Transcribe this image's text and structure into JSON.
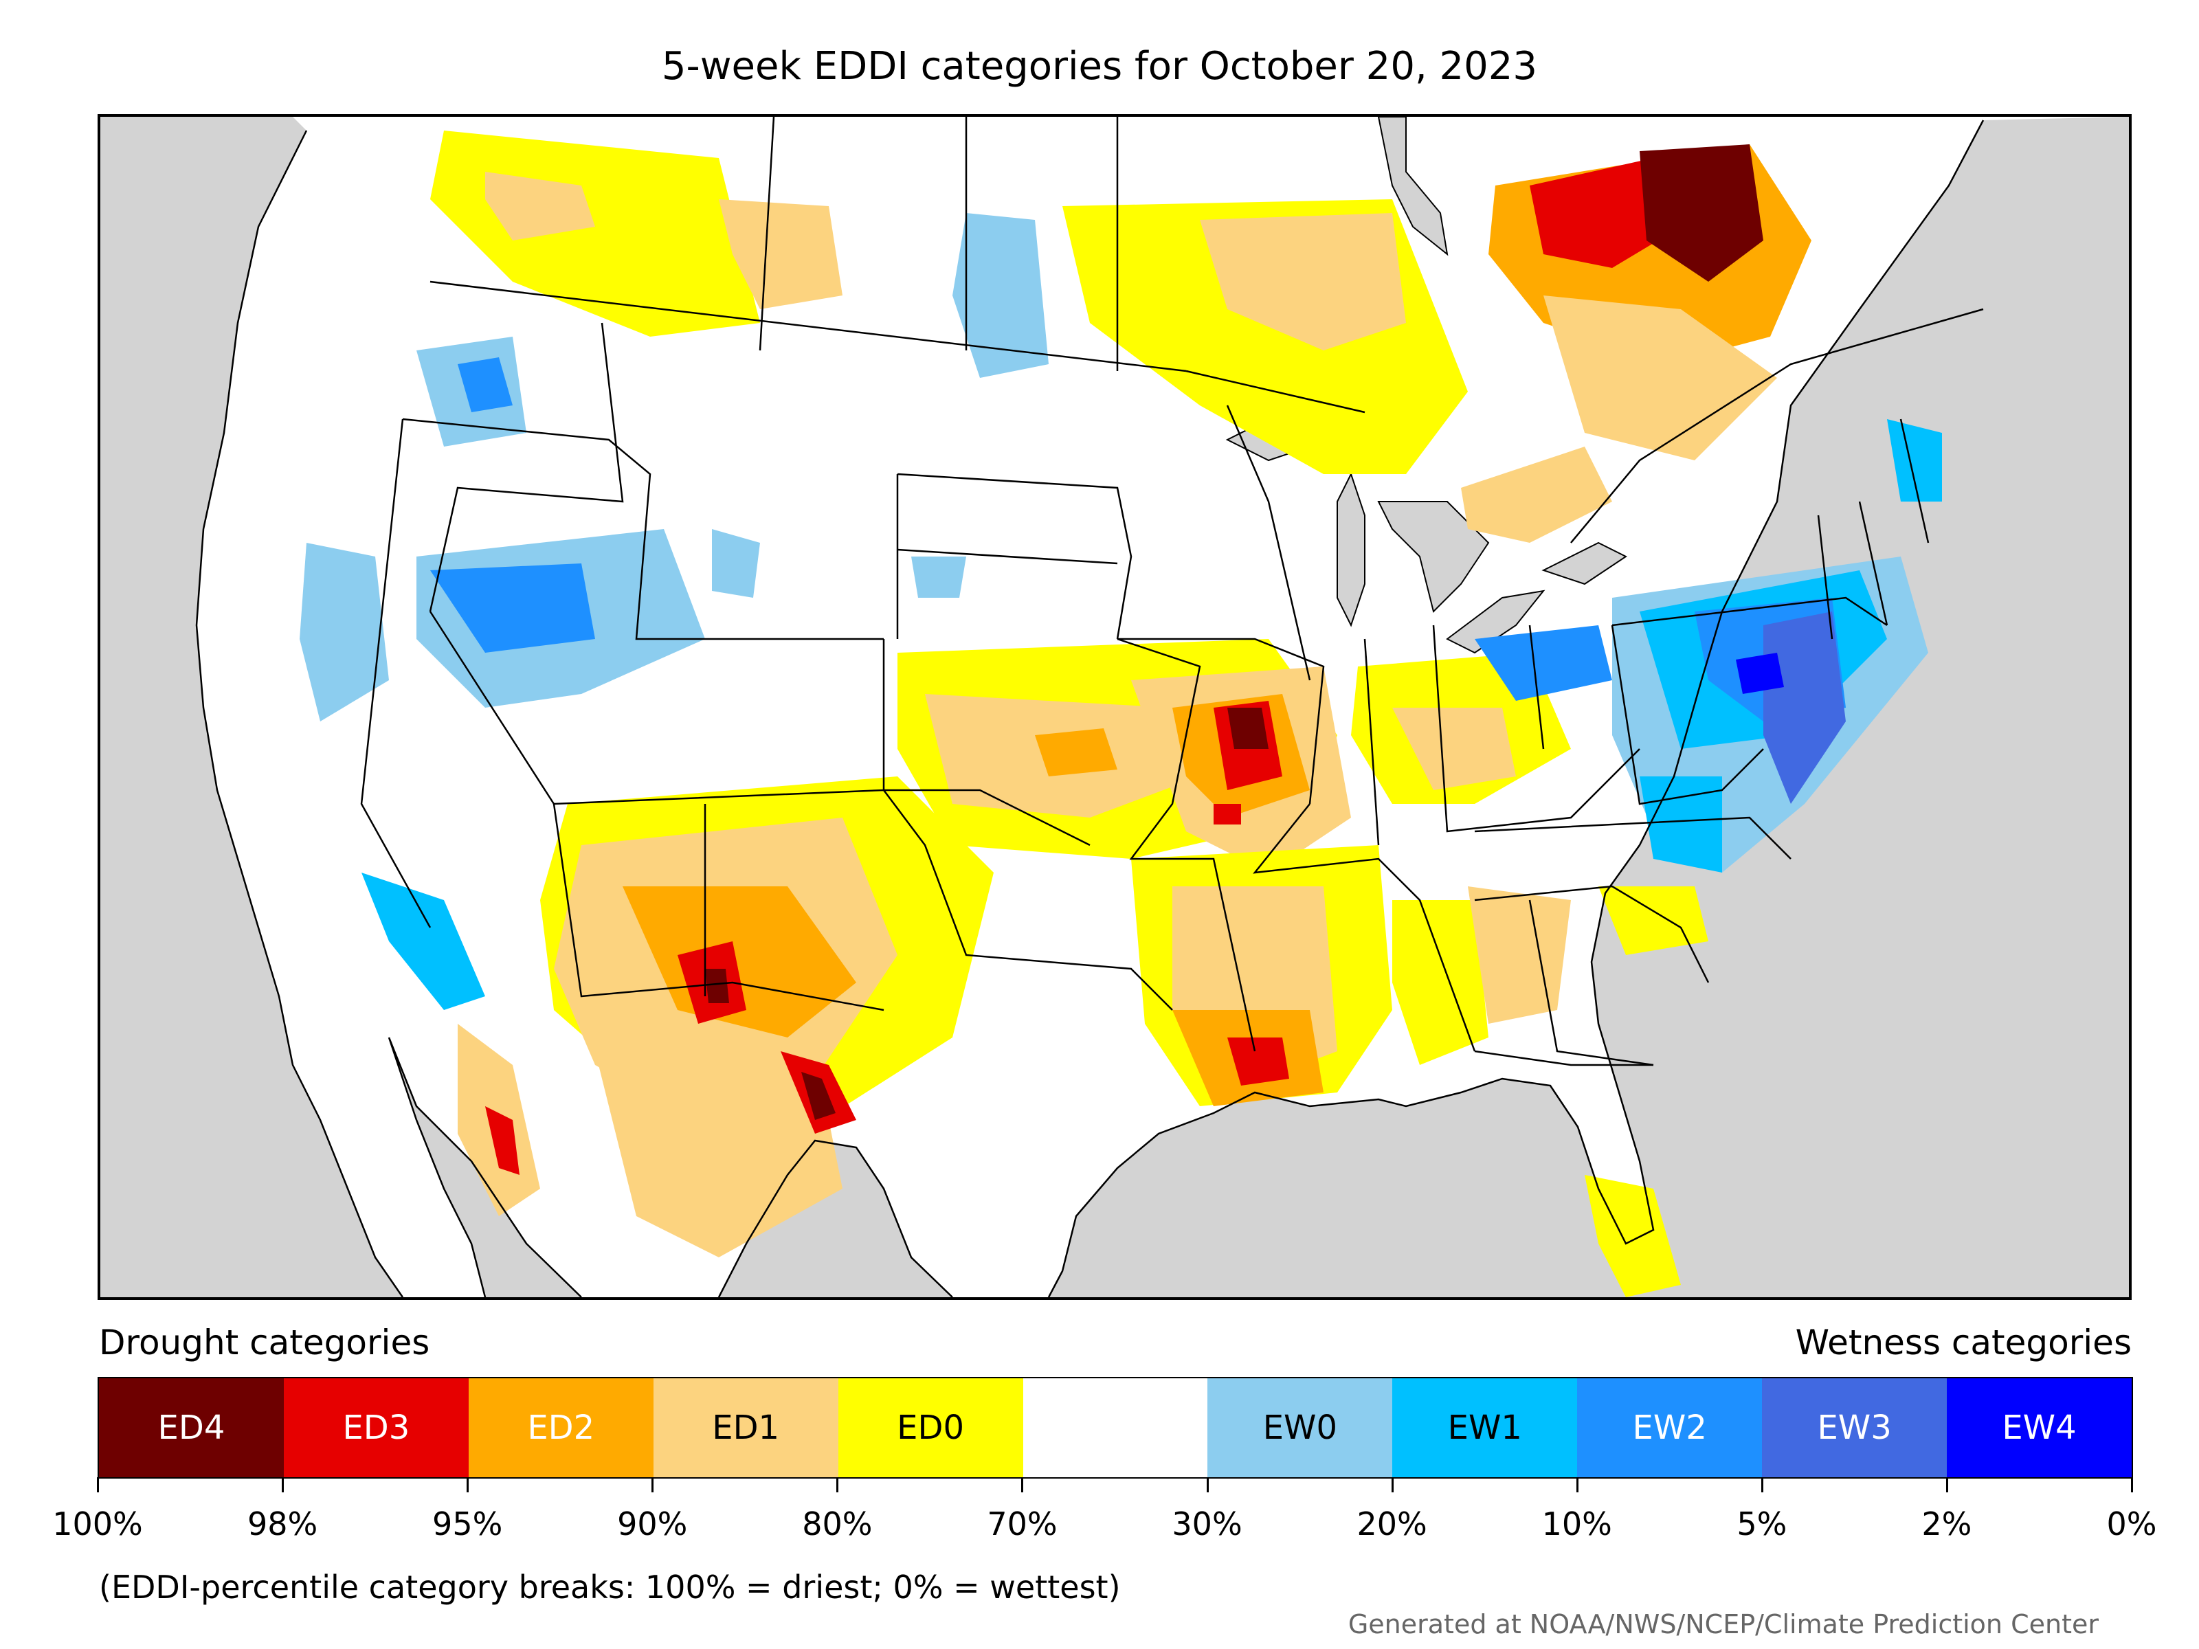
{
  "title": "5-week EDDI categories for October 20, 2023",
  "legend": {
    "left_label": "Drought categories",
    "right_label": "Wetness categories",
    "categories": [
      {
        "label": "ED4",
        "color": "#6e0000",
        "text_color": "#ffffff"
      },
      {
        "label": "ED3",
        "color": "#e60000",
        "text_color": "#ffffff"
      },
      {
        "label": "ED2",
        "color": "#ffaa00",
        "text_color": "#ffffff"
      },
      {
        "label": "ED1",
        "color": "#fcd37f",
        "text_color": "#000000"
      },
      {
        "label": "ED0",
        "color": "#ffff00",
        "text_color": "#000000"
      },
      {
        "label": "",
        "color": "#ffffff",
        "text_color": "#000000"
      },
      {
        "label": "EW0",
        "color": "#8ccdef",
        "text_color": "#000000"
      },
      {
        "label": "EW1",
        "color": "#00c0ff",
        "text_color": "#000000"
      },
      {
        "label": "EW2",
        "color": "#1e90ff",
        "text_color": "#ffffff"
      },
      {
        "label": "EW3",
        "color": "#4169e1",
        "text_color": "#ffffff"
      },
      {
        "label": "EW4",
        "color": "#0000ff",
        "text_color": "#ffffff"
      }
    ],
    "breaks": [
      "100%",
      "98%",
      "95%",
      "90%",
      "80%",
      "70%",
      "30%",
      "20%",
      "10%",
      "5%",
      "2%",
      "0%"
    ]
  },
  "note": "(EDDI-percentile category breaks: 100% = driest; 0% = wettest)",
  "credit": "Generated at NOAA/NWS/NCEP/Climate Prediction Center",
  "map": {
    "background_color": "#d3d3d3",
    "land_color": "#ffffff",
    "region_colors": {
      "ED4": "#6e0000",
      "ED3": "#e60000",
      "ED2": "#ffaa00",
      "ED1": "#fcd37f",
      "ED0": "#ffff00",
      "EW0": "#8ccdef",
      "EW1": "#00c0ff",
      "EW2": "#1e90ff",
      "EW3": "#4169e1",
      "EW4": "#0000ff"
    }
  }
}
